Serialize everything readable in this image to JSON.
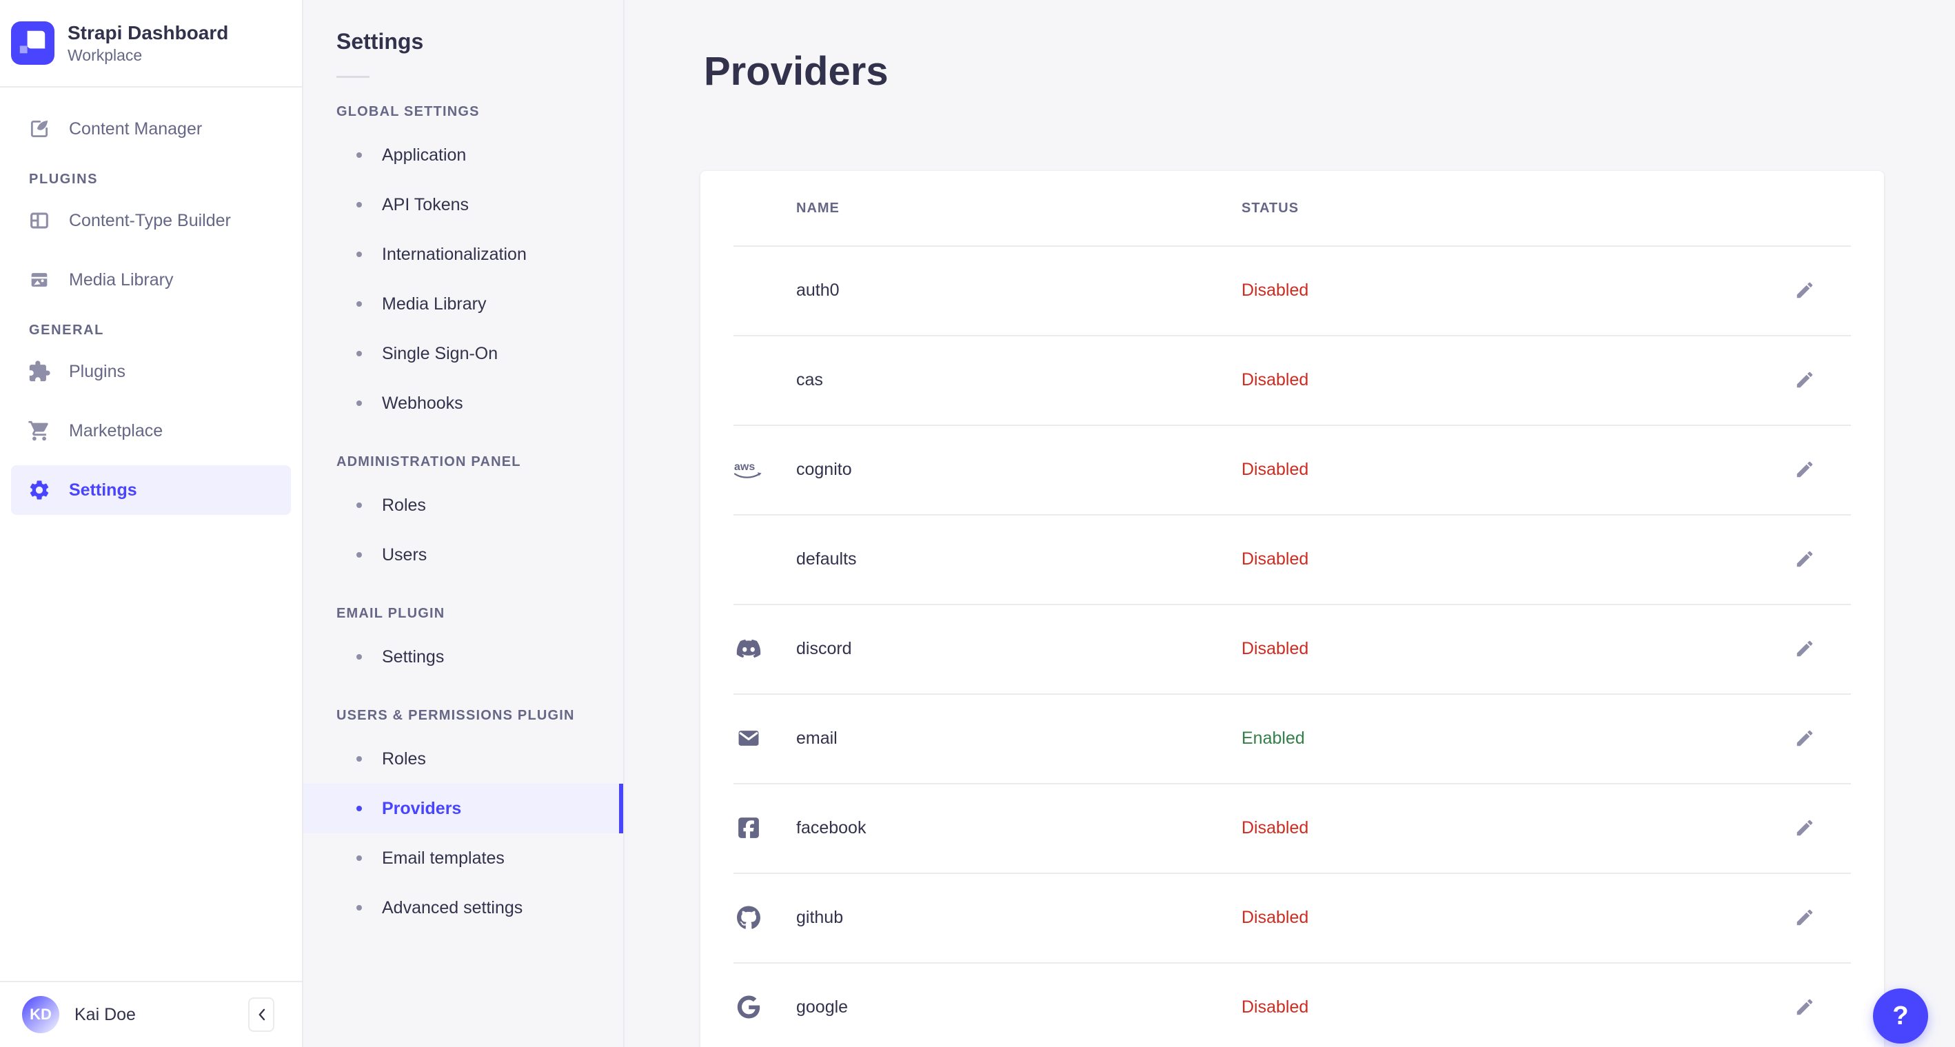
{
  "colors": {
    "primary": "#4945ff",
    "primary_light": "#f0f0ff",
    "danger": "#d02b20",
    "success": "#328048",
    "text_dark": "#32324d",
    "text_muted": "#666687",
    "icon_muted": "#8e8ea9",
    "border": "#eaeaef",
    "background": "#f6f6f9"
  },
  "brand": {
    "title": "Strapi Dashboard",
    "subtitle": "Workplace",
    "logo_icon": "strapi-logo"
  },
  "sidebar": {
    "sections": [
      {
        "title": "",
        "items": [
          {
            "label": "Content Manager",
            "icon": "content-manager"
          }
        ]
      },
      {
        "title": "PLUGINS",
        "items": [
          {
            "label": "Content-Type Builder",
            "icon": "content-type-builder"
          },
          {
            "label": "Media Library",
            "icon": "media-library"
          }
        ]
      },
      {
        "title": "GENERAL",
        "items": [
          {
            "label": "Plugins",
            "icon": "plugins"
          },
          {
            "label": "Marketplace",
            "icon": "marketplace"
          },
          {
            "label": "Settings",
            "icon": "settings",
            "active": true
          }
        ]
      }
    ],
    "user": {
      "name": "Kai Doe",
      "initials": "KD"
    },
    "collapse_icon": "chevron-left"
  },
  "subnav": {
    "title": "Settings",
    "sections": [
      {
        "title": "GLOBAL SETTINGS",
        "items": [
          {
            "label": "Application"
          },
          {
            "label": "API Tokens"
          },
          {
            "label": "Internationalization"
          },
          {
            "label": "Media Library"
          },
          {
            "label": "Single Sign-On"
          },
          {
            "label": "Webhooks"
          }
        ]
      },
      {
        "title": "ADMINISTRATION PANEL",
        "items": [
          {
            "label": "Roles"
          },
          {
            "label": "Users"
          }
        ]
      },
      {
        "title": "EMAIL PLUGIN",
        "items": [
          {
            "label": "Settings"
          }
        ]
      },
      {
        "title": "USERS & PERMISSIONS PLUGIN",
        "items": [
          {
            "label": "Roles"
          },
          {
            "label": "Providers",
            "active": true
          },
          {
            "label": "Email templates"
          },
          {
            "label": "Advanced settings"
          }
        ]
      }
    ]
  },
  "main": {
    "title": "Providers",
    "table": {
      "columns": [
        "NAME",
        "STATUS"
      ],
      "rows": [
        {
          "name": "auth0",
          "icon": null,
          "status": "Disabled"
        },
        {
          "name": "cas",
          "icon": null,
          "status": "Disabled"
        },
        {
          "name": "cognito",
          "icon": "aws",
          "status": "Disabled"
        },
        {
          "name": "defaults",
          "icon": null,
          "status": "Disabled"
        },
        {
          "name": "discord",
          "icon": "discord",
          "status": "Disabled"
        },
        {
          "name": "email",
          "icon": "email",
          "status": "Enabled"
        },
        {
          "name": "facebook",
          "icon": "facebook",
          "status": "Disabled"
        },
        {
          "name": "github",
          "icon": "github",
          "status": "Disabled"
        },
        {
          "name": "google",
          "icon": "google",
          "status": "Disabled"
        }
      ]
    }
  },
  "help": {
    "label": "?"
  }
}
